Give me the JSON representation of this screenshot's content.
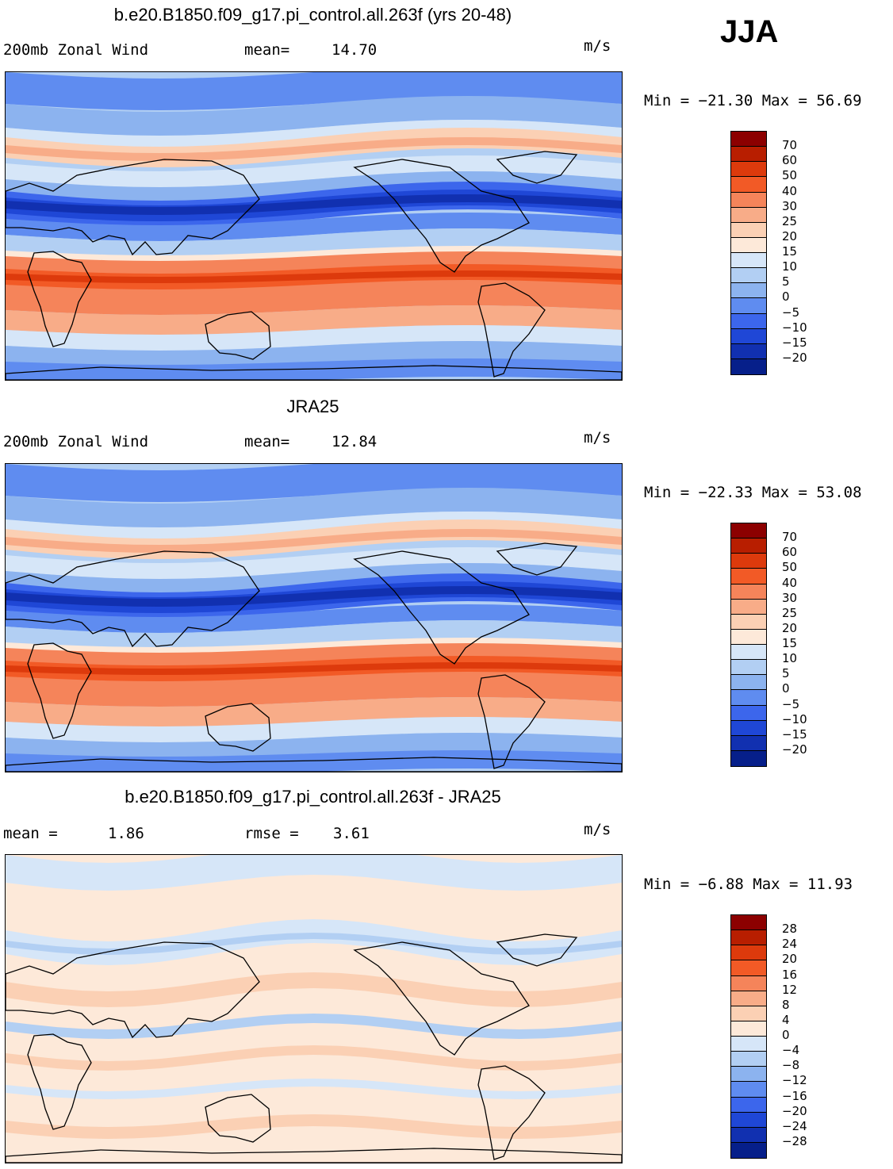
{
  "season": "JJA",
  "panels": [
    {
      "title": "b.e20.B1850.f09_g17.pi_control.all.263f (yrs 20-48)",
      "left_label": "200mb Zonal Wind",
      "stat_label": "mean=",
      "stat_value": "14.70",
      "stat2_label": "",
      "stat2_value": "",
      "units": "m/s",
      "minmax": "Min = −21.30 Max =  56.69",
      "colorbar_labels": [
        "70",
        "60",
        "50",
        "40",
        "30",
        "25",
        "20",
        "15",
        "10",
        "5",
        "0",
        "−5",
        "−10",
        "−15",
        "−20"
      ]
    },
    {
      "title": "JRA25",
      "left_label": "200mb Zonal Wind",
      "stat_label": "mean=",
      "stat_value": "12.84",
      "stat2_label": "",
      "stat2_value": "",
      "units": "m/s",
      "minmax": "Min = −22.33 Max =  53.08",
      "colorbar_labels": [
        "70",
        "60",
        "50",
        "40",
        "30",
        "25",
        "20",
        "15",
        "10",
        "5",
        "0",
        "−5",
        "−10",
        "−15",
        "−20"
      ]
    },
    {
      "title": "b.e20.B1850.f09_g17.pi_control.all.263f - JRA25",
      "left_label": "mean =",
      "stat_label": "",
      "stat_value": "1.86",
      "stat2_label": "rmse =",
      "stat2_value": "3.61",
      "units": "m/s",
      "minmax": "Min =  −6.88 Max =  11.93",
      "colorbar_labels": [
        "28",
        "24",
        "20",
        "16",
        "12",
        "8",
        "4",
        "0",
        "−4",
        "−8",
        "−12",
        "−16",
        "−20",
        "−24",
        "−28"
      ]
    }
  ],
  "colors": {
    "scale": [
      "#8c0000",
      "#b81e00",
      "#dd3a0c",
      "#f25a26",
      "#f5845a",
      "#f8ac88",
      "#fbd0b4",
      "#fde9d9",
      "#d6e6f8",
      "#b2cff3",
      "#8cb3ef",
      "#5f8cf0",
      "#3c66ec",
      "#1f47d6",
      "#1130b0",
      "#061f8a"
    ]
  }
}
